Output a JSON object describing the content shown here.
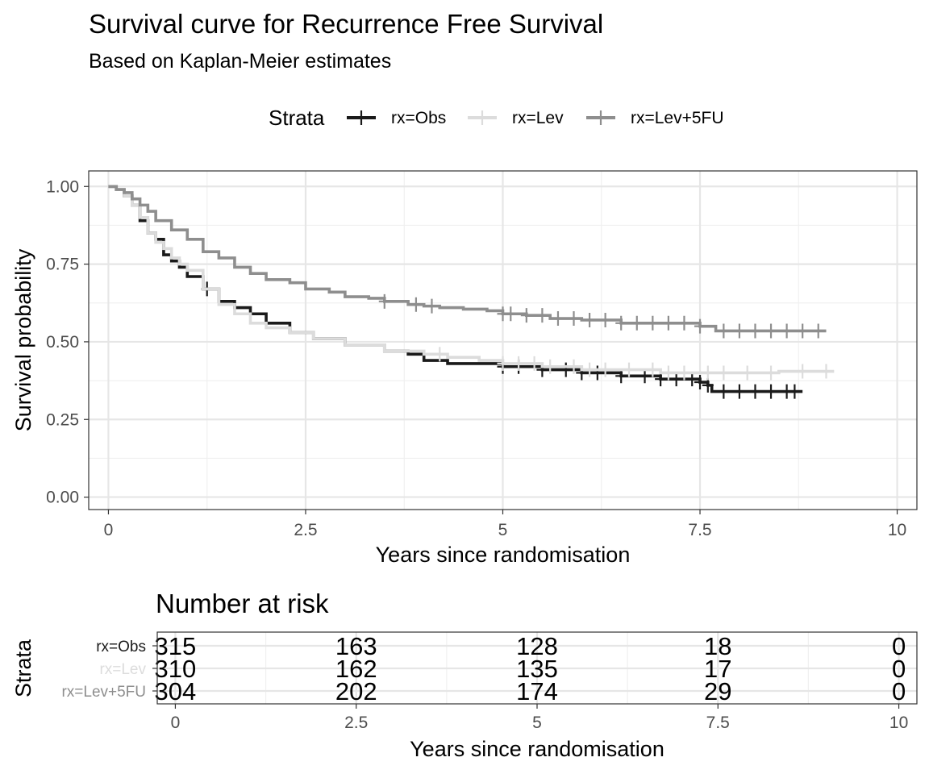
{
  "chart_data": [
    {
      "type": "line",
      "title": "Survival curve for Recurrence Free Survival",
      "subtitle": "Based on Kaplan-Meier estimates",
      "xlabel": "Years since randomisation",
      "ylabel": "Survival probability",
      "xlim": [
        -0.25,
        10.25
      ],
      "ylim": [
        -0.04,
        1.05
      ],
      "x_ticks": [
        "0",
        "2.5",
        "5",
        "7.5",
        "10"
      ],
      "y_ticks": [
        "0.00",
        "0.25",
        "0.50",
        "0.75",
        "1.00"
      ],
      "grid": true,
      "legend": {
        "title": "Strata",
        "position": "top"
      },
      "series": [
        {
          "name": "rx=Obs",
          "color": "#1a1a1a",
          "x": [
            0,
            0.1,
            0.2,
            0.3,
            0.4,
            0.5,
            0.6,
            0.7,
            0.8,
            0.9,
            1.0,
            1.2,
            1.4,
            1.6,
            1.8,
            2.0,
            2.3,
            2.6,
            3.0,
            3.5,
            3.8,
            4.0,
            4.3,
            4.7,
            5.0,
            5.5,
            6.0,
            6.5,
            7.0,
            7.5,
            7.6,
            7.65,
            8.8
          ],
          "y": [
            1.0,
            0.99,
            0.97,
            0.94,
            0.89,
            0.85,
            0.83,
            0.78,
            0.76,
            0.74,
            0.71,
            0.67,
            0.63,
            0.61,
            0.59,
            0.56,
            0.53,
            0.51,
            0.49,
            0.47,
            0.46,
            0.44,
            0.43,
            0.43,
            0.42,
            0.41,
            0.4,
            0.39,
            0.38,
            0.37,
            0.36,
            0.34,
            0.34
          ],
          "censor_x": [
            1.25,
            5.0,
            5.2,
            5.5,
            5.8,
            6.0,
            6.2,
            6.5,
            6.8,
            7.0,
            7.2,
            7.4,
            7.5,
            7.6,
            7.8,
            8.0,
            8.2,
            8.4,
            8.6,
            8.7
          ]
        },
        {
          "name": "rx=Lev",
          "color": "#dcdcdc",
          "x": [
            0,
            0.1,
            0.2,
            0.3,
            0.4,
            0.5,
            0.6,
            0.7,
            0.8,
            0.9,
            1.0,
            1.2,
            1.4,
            1.6,
            1.8,
            2.0,
            2.3,
            2.6,
            3.0,
            3.5,
            4.0,
            4.3,
            4.7,
            5.0,
            5.5,
            6.0,
            6.5,
            7.0,
            7.5,
            8.0,
            8.5,
            9.2
          ],
          "y": [
            1.0,
            0.99,
            0.97,
            0.94,
            0.9,
            0.85,
            0.82,
            0.8,
            0.77,
            0.75,
            0.73,
            0.67,
            0.62,
            0.59,
            0.56,
            0.545,
            0.53,
            0.51,
            0.49,
            0.47,
            0.46,
            0.45,
            0.44,
            0.43,
            0.42,
            0.41,
            0.41,
            0.4,
            0.4,
            0.4,
            0.405,
            0.405
          ],
          "censor_x": [
            4.2,
            5.0,
            5.2,
            5.4,
            5.6,
            5.9,
            6.1,
            6.3,
            6.6,
            6.9,
            7.1,
            7.3,
            7.6,
            7.8,
            8.1,
            8.4,
            8.8,
            9.1
          ]
        },
        {
          "name": "rx=Lev+5FU",
          "color": "#8e8e8e",
          "x": [
            0,
            0.1,
            0.2,
            0.3,
            0.4,
            0.5,
            0.6,
            0.8,
            1.0,
            1.2,
            1.4,
            1.6,
            1.8,
            2.0,
            2.3,
            2.5,
            2.8,
            3.0,
            3.3,
            3.5,
            3.8,
            4.0,
            4.2,
            4.5,
            4.8,
            5.0,
            5.3,
            5.6,
            6.0,
            6.5,
            7.0,
            7.5,
            7.7,
            9.1
          ],
          "y": [
            1.0,
            0.99,
            0.98,
            0.96,
            0.94,
            0.92,
            0.89,
            0.86,
            0.83,
            0.79,
            0.77,
            0.74,
            0.72,
            0.7,
            0.69,
            0.67,
            0.66,
            0.645,
            0.64,
            0.63,
            0.62,
            0.615,
            0.61,
            0.605,
            0.6,
            0.59,
            0.585,
            0.575,
            0.57,
            0.56,
            0.56,
            0.55,
            0.535,
            0.535
          ],
          "censor_x": [
            3.5,
            3.9,
            4.1,
            5.0,
            5.1,
            5.3,
            5.5,
            5.7,
            5.9,
            6.1,
            6.3,
            6.5,
            6.7,
            6.9,
            7.1,
            7.3,
            7.5,
            7.8,
            8.0,
            8.2,
            8.4,
            8.6,
            8.8,
            9.0
          ]
        }
      ]
    },
    {
      "type": "table",
      "title": "Number at risk",
      "xlabel": "Years since randomisation",
      "ylabel": "Strata",
      "x_ticks": [
        "0",
        "2.5",
        "5",
        "7.5",
        "10"
      ],
      "rows": [
        {
          "label": "rx=Obs",
          "color": "#1a1a1a",
          "values": [
            "315",
            "163",
            "128",
            "18",
            "0"
          ]
        },
        {
          "label": "rx=Lev",
          "color": "#dcdcdc",
          "values": [
            "310",
            "162",
            "135",
            "17",
            "0"
          ]
        },
        {
          "label": "rx=Lev+5FU",
          "color": "#8e8e8e",
          "values": [
            "304",
            "202",
            "174",
            "29",
            "0"
          ]
        }
      ]
    }
  ]
}
